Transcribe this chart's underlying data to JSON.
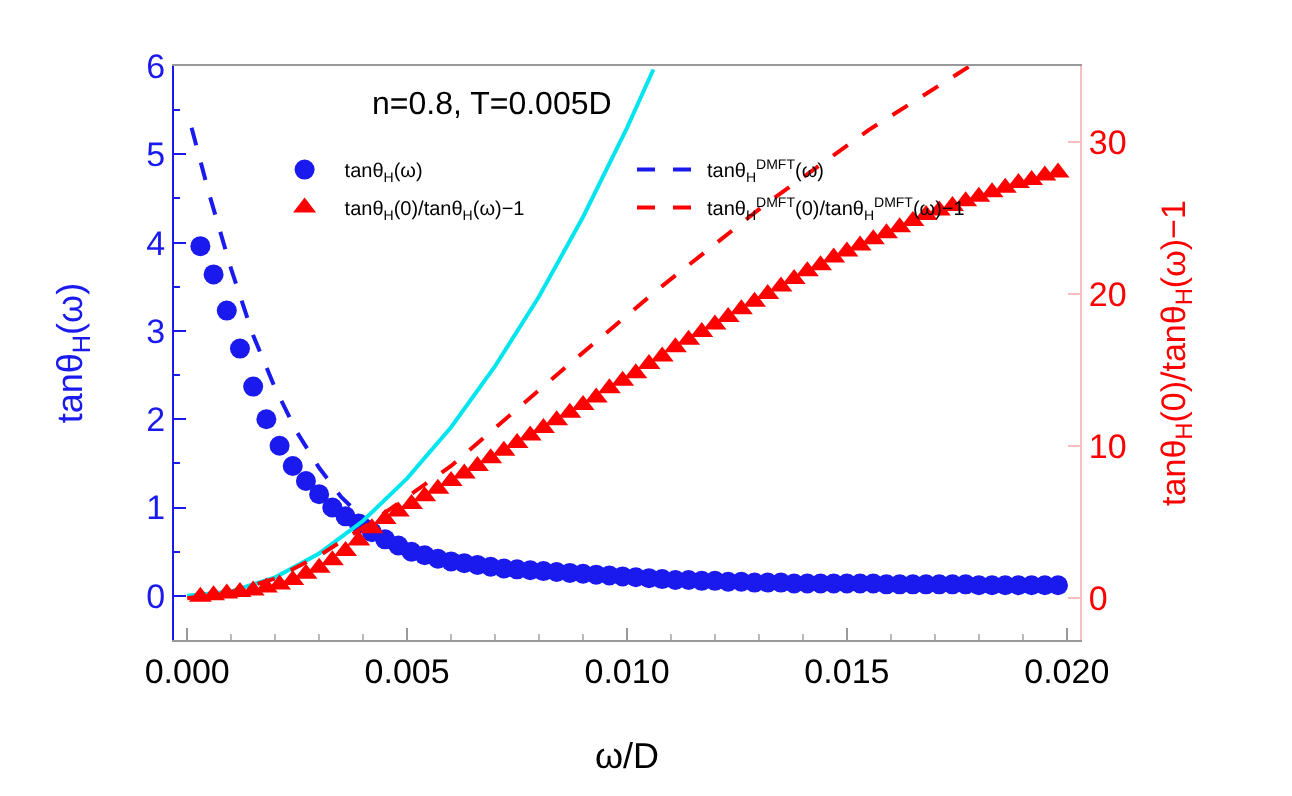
{
  "chart_data": {
    "type": "scatter",
    "xlabel": "ω/D",
    "ylabel": "tanθ$_{H}$(ω)",
    "y2label": "tanθ$_{H}$(0)/tanθ$_{H}$(ω)−1",
    "annotations": [
      "n=0.8, T=0.005D"
    ],
    "x": [
      0.0003,
      0.0006,
      0.0009,
      0.0012,
      0.0015,
      0.0018,
      0.0021,
      0.0024,
      0.0027,
      0.003,
      0.0033,
      0.0036,
      0.0039,
      0.0042,
      0.0045,
      0.0048,
      0.0051,
      0.0054,
      0.0057,
      0.006,
      0.0063,
      0.0066,
      0.0069,
      0.0072,
      0.0075,
      0.0078,
      0.0081,
      0.0084,
      0.0087,
      0.009,
      0.0093,
      0.0096,
      0.0099,
      0.0102,
      0.0105,
      0.0108,
      0.0111,
      0.0114,
      0.0117,
      0.012,
      0.0123,
      0.0126,
      0.0129,
      0.0132,
      0.0135,
      0.0138,
      0.0141,
      0.0144,
      0.0147,
      0.015,
      0.0153,
      0.0156,
      0.0159,
      0.0162,
      0.0165,
      0.0168,
      0.0171,
      0.0174,
      0.0177,
      0.018,
      0.0183,
      0.0186,
      0.0189,
      0.0192,
      0.0195,
      0.0198
    ],
    "series": [
      {
        "name": "tanθ$_{H}$(ω)",
        "color": "#1a1aee",
        "marker": "circle",
        "values": [
          3.96,
          3.64,
          3.23,
          2.8,
          2.37,
          2.0,
          1.7,
          1.47,
          1.3,
          1.15,
          1.0,
          0.9,
          0.82,
          0.72,
          0.64,
          0.57,
          0.5,
          0.46,
          0.42,
          0.39,
          0.37,
          0.35,
          0.33,
          0.31,
          0.3,
          0.29,
          0.28,
          0.27,
          0.26,
          0.25,
          0.24,
          0.23,
          0.22,
          0.21,
          0.2,
          0.19,
          0.18,
          0.18,
          0.17,
          0.17,
          0.16,
          0.16,
          0.15,
          0.15,
          0.15,
          0.14,
          0.14,
          0.14,
          0.14,
          0.14,
          0.14,
          0.14,
          0.13,
          0.13,
          0.13,
          0.13,
          0.13,
          0.13,
          0.13,
          0.12,
          0.12,
          0.12,
          0.12,
          0.12,
          0.12,
          0.12
        ]
      },
      {
        "name": "tanθ$_{H}$$^{DMFT}$(ω)",
        "type": "line",
        "line_style": "dashed",
        "color": "#1a1aee",
        "x": [
          0.0001,
          0.0005,
          0.001,
          0.0015,
          0.002,
          0.0025,
          0.003,
          0.0035,
          0.004,
          0.0045
        ],
        "values": [
          5.3,
          4.55,
          3.7,
          2.95,
          2.35,
          1.85,
          1.45,
          1.12,
          0.88,
          0.72
        ]
      },
      {
        "name": "tanθ$_{H}$(0)/tanθ$_{H}$(ω)−1",
        "axis": "y2",
        "color": "#ff0000",
        "marker": "triangle",
        "values": [
          0.1,
          0.2,
          0.3,
          0.4,
          0.5,
          0.7,
          0.9,
          1.2,
          1.6,
          2.0,
          2.5,
          3.1,
          3.8,
          4.6,
          5.2,
          5.7,
          6.2,
          6.7,
          7.2,
          7.7,
          8.2,
          8.7,
          9.2,
          9.7,
          10.2,
          10.7,
          11.2,
          11.7,
          12.2,
          12.7,
          13.2,
          13.8,
          14.3,
          14.8,
          15.4,
          15.9,
          16.5,
          17.0,
          17.5,
          18.0,
          18.5,
          19.0,
          19.5,
          20.0,
          20.5,
          21.0,
          21.5,
          21.9,
          22.4,
          22.8,
          23.2,
          23.6,
          24.0,
          24.4,
          24.8,
          25.2,
          25.5,
          25.8,
          26.1,
          26.4,
          26.7,
          27.0,
          27.3,
          27.5,
          27.8,
          28.0
        ]
      },
      {
        "name": "tanθ$_{H}$$^{DMFT}$(0)/tanθ$_{H}$$^{DMFT}$(ω)−1",
        "type": "line",
        "line_style": "dashed",
        "axis": "y2",
        "color": "#ff0000",
        "x": [
          0,
          0.001,
          0.002,
          0.003,
          0.00424,
          0.006,
          0.00865,
          0.0107,
          0.0131,
          0.0155,
          0.0178
        ],
        "values": [
          0,
          0.4,
          1.3,
          2.8,
          5.1,
          8.7,
          15.3,
          20.3,
          25.8,
          30.8,
          35
        ]
      },
      {
        "type": "line",
        "line_style": "solid",
        "color": "#00e5ee",
        "x": [
          0,
          0.001,
          0.002,
          0.003,
          0.004,
          0.005,
          0.006,
          0.007,
          0.008,
          0.009,
          0.01,
          0.0106
        ],
        "values": [
          0,
          0.05,
          0.21,
          0.48,
          0.85,
          1.33,
          1.91,
          2.6,
          3.39,
          4.29,
          5.3,
          5.96
        ]
      }
    ],
    "xlim": [
      -0.0003,
      0.0203
    ],
    "xticks": [
      {
        "value": 0,
        "label": "0.000"
      },
      {
        "value": 0.005,
        "label": "0.005"
      },
      {
        "value": 0.01,
        "label": "0.010"
      },
      {
        "value": 0.015,
        "label": "0.015"
      },
      {
        "value": 0.02,
        "label": "0.020"
      }
    ],
    "ylim": [
      -0.5,
      6
    ],
    "yticks": [
      0,
      1,
      2,
      3,
      4,
      5,
      6
    ],
    "y2lim": [
      -2.75,
      35
    ],
    "y2ticks": [
      0,
      10,
      20,
      30
    ],
    "grid": false,
    "legend": "top"
  }
}
